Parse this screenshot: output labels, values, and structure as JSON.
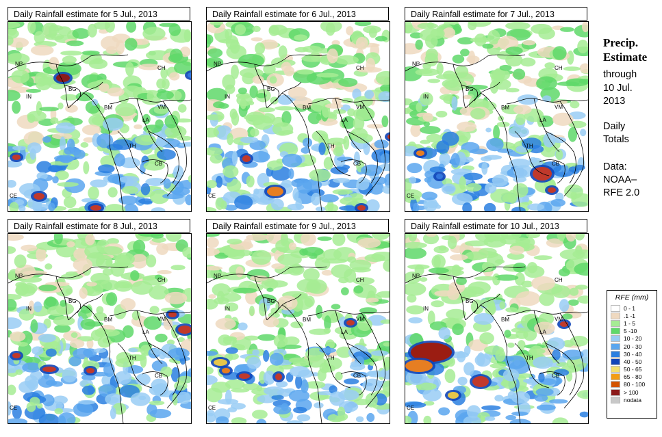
{
  "panels": [
    {
      "title": "Daily Rainfall estimate for  5 Jul., 2013",
      "hotspots": [
        [
          80,
          82,
          10,
          6,
          "#8b1a1a"
        ],
        [
          45,
          255,
          8,
          5,
          "#c0392b"
        ],
        [
          12,
          198,
          6,
          4,
          "#c0392b"
        ],
        [
          128,
          272,
          8,
          4,
          "#c0392b"
        ],
        [
          268,
          78,
          6,
          4,
          "#3377dd"
        ]
      ]
    },
    {
      "title": "Daily Rainfall estimate for  6 Jul., 2013",
      "hotspots": [
        [
          100,
          248,
          12,
          7,
          "#e67e22"
        ],
        [
          270,
          168,
          6,
          4,
          "#c0392b"
        ],
        [
          58,
          200,
          6,
          5,
          "#c0392b"
        ],
        [
          226,
          272,
          6,
          4,
          "#c0392b"
        ]
      ]
    },
    {
      "title": "Daily Rainfall estimate for  7 Jul., 2013",
      "hotspots": [
        [
          200,
          222,
          14,
          10,
          "#c0392b"
        ],
        [
          22,
          192,
          6,
          4,
          "#e67e22"
        ],
        [
          214,
          246,
          6,
          4,
          "#c0392b"
        ],
        [
          50,
          226,
          5,
          4,
          "#3377dd"
        ]
      ]
    },
    {
      "title": "Daily Rainfall estimate for  8 Jul., 2013",
      "hotspots": [
        [
          60,
          198,
          10,
          4,
          "#c0392b"
        ],
        [
          258,
          140,
          10,
          6,
          "#c0392b"
        ],
        [
          240,
          118,
          6,
          4,
          "#c0392b"
        ],
        [
          120,
          200,
          6,
          4,
          "#c0392b"
        ],
        [
          12,
          178,
          6,
          4,
          "#c0392b"
        ]
      ]
    },
    {
      "title": "Daily Rainfall estimate for  9 Jul., 2013",
      "hotspots": [
        [
          20,
          188,
          10,
          5,
          "#e6c54a"
        ],
        [
          55,
          208,
          8,
          4,
          "#c0392b"
        ],
        [
          105,
          209,
          5,
          5,
          "#c0392b"
        ],
        [
          210,
          130,
          6,
          4,
          "#c0392b"
        ],
        [
          28,
          200,
          6,
          4,
          "#e67e22"
        ]
      ]
    },
    {
      "title": "Daily Rainfall estimate for  10 Jul., 2013",
      "hotspots": [
        [
          38,
          173,
          30,
          14,
          "#9b1d12"
        ],
        [
          20,
          193,
          20,
          9,
          "#e67e22"
        ],
        [
          110,
          216,
          12,
          8,
          "#c0392b"
        ],
        [
          70,
          236,
          8,
          5,
          "#e6c54a"
        ],
        [
          232,
          132,
          6,
          4,
          "#c0392b"
        ]
      ]
    }
  ],
  "labels": [
    {
      "t": "NP",
      "x": 10,
      "y": 64
    },
    {
      "t": "IN",
      "x": 26,
      "y": 112
    },
    {
      "t": "BG",
      "x": 88,
      "y": 101
    },
    {
      "t": "CH",
      "x": 218,
      "y": 70
    },
    {
      "t": "BM",
      "x": 140,
      "y": 128
    },
    {
      "t": "VM",
      "x": 218,
      "y": 127
    },
    {
      "t": "LA",
      "x": 196,
      "y": 146
    },
    {
      "t": "TH",
      "x": 176,
      "y": 184
    },
    {
      "t": "CB",
      "x": 214,
      "y": 210
    },
    {
      "t": "CE",
      "x": 2,
      "y": 257
    }
  ],
  "sidebar": {
    "title_line1": "Precip.",
    "title_line2": "Estimate",
    "through": "through",
    "date1": "10 Jul.",
    "date2": "2013",
    "daily1": "Daily",
    "daily2": "Totals",
    "data1": "Data:",
    "data2": "NOAA–",
    "data3": "RFE 2.0"
  },
  "legend": {
    "title": "RFE (mm)",
    "items": [
      {
        "label": "0 - 1",
        "color": "#ffffff"
      },
      {
        "label": ".1 -1",
        "color": "#efd9c0"
      },
      {
        "label": "1 - 5",
        "color": "#a6ec94"
      },
      {
        "label": "5 -10",
        "color": "#5fd86a"
      },
      {
        "label": "10 - 20",
        "color": "#99ccf5"
      },
      {
        "label": "20 - 30",
        "color": "#5aa6ee"
      },
      {
        "label": "30 - 40",
        "color": "#2a7fe0"
      },
      {
        "label": "40 - 50",
        "color": "#1045b8"
      },
      {
        "label": "50 - 65",
        "color": "#f2e06e"
      },
      {
        "label": "65 - 80",
        "color": "#f39c12"
      },
      {
        "label": "80 - 100",
        "color": "#d35400"
      },
      {
        "label": "> 100",
        "color": "#8b1a1a"
      },
      {
        "label": "nodata",
        "color": "#c8c8c8"
      }
    ]
  }
}
